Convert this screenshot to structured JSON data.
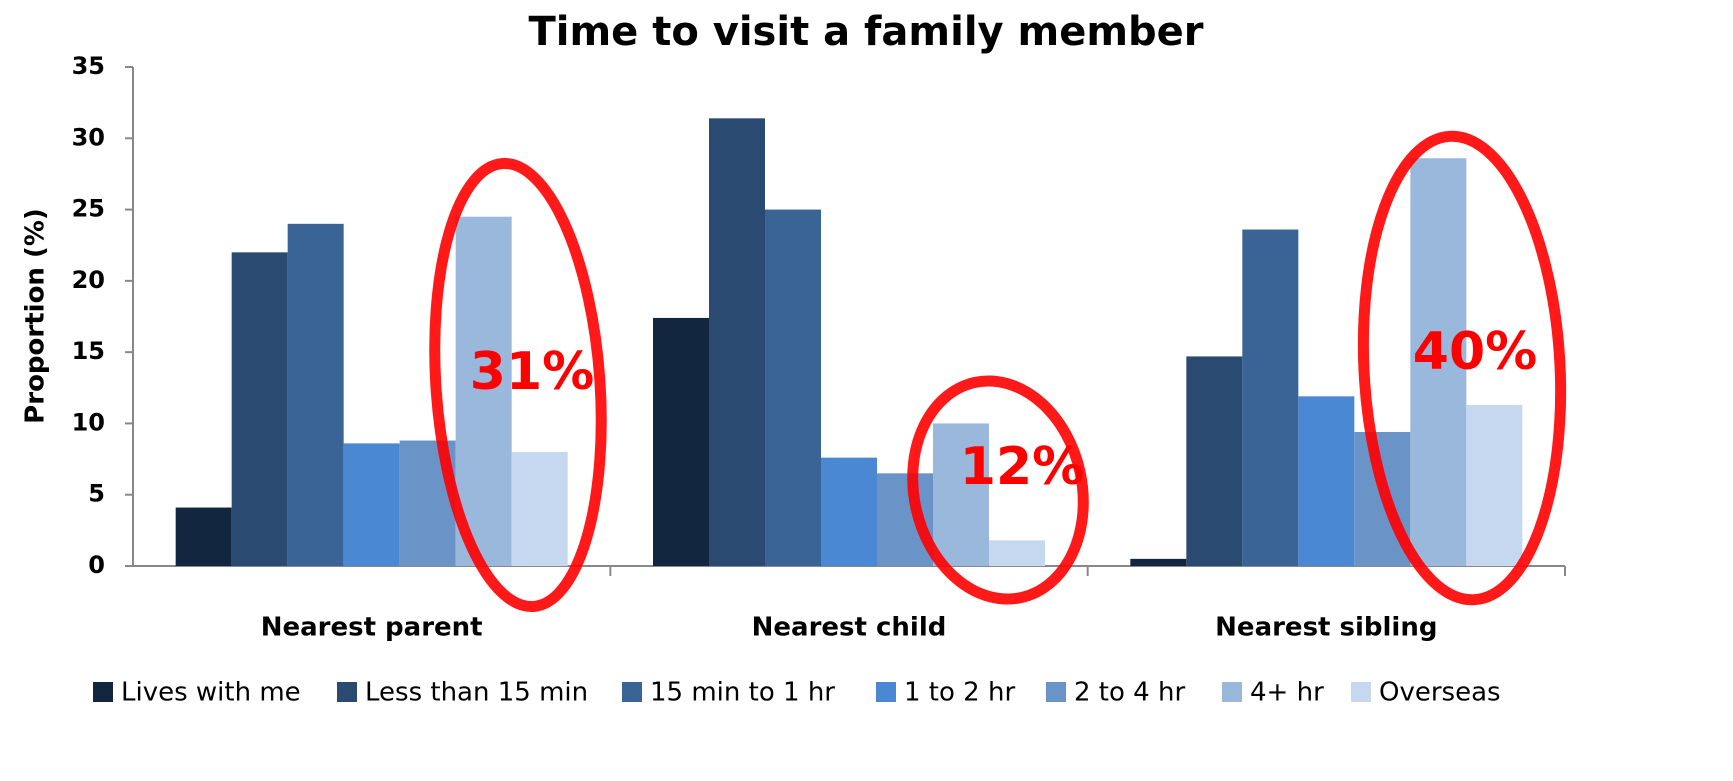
{
  "chart_data": {
    "type": "bar",
    "title": "Time to visit a family member",
    "ylabel": "Proportion (%)",
    "categories": [
      "Nearest parent",
      "Nearest child",
      "Nearest sibling"
    ],
    "series": [
      {
        "name": "Lives with me",
        "color": "#12263f",
        "values": [
          4.1,
          17.4,
          0.5
        ]
      },
      {
        "name": "Less than 15 min",
        "color": "#2a4a72",
        "values": [
          22.0,
          31.4,
          14.7
        ]
      },
      {
        "name": "15 min to 1 hr",
        "color": "#3a6496",
        "values": [
          24.0,
          25.0,
          23.6
        ]
      },
      {
        "name": "1 to 2 hr",
        "color": "#4a88d4",
        "values": [
          8.6,
          7.6,
          11.9
        ]
      },
      {
        "name": "2 to 4 hr",
        "color": "#6a93c8",
        "values": [
          8.8,
          6.5,
          9.4
        ]
      },
      {
        "name": "4+ hr",
        "color": "#9ab7dc",
        "values": [
          24.5,
          10.0,
          28.6
        ]
      },
      {
        "name": "Overseas",
        "color": "#c5d8ef",
        "values": [
          8.0,
          1.8,
          11.3
        ]
      }
    ],
    "ylim": [
      0,
      35
    ],
    "yticks": [
      0,
      5,
      10,
      15,
      20,
      25,
      30,
      35
    ],
    "grid": false,
    "annotations": [
      "31%",
      "12%",
      "40%"
    ],
    "annotation_color": "#ff0000"
  }
}
